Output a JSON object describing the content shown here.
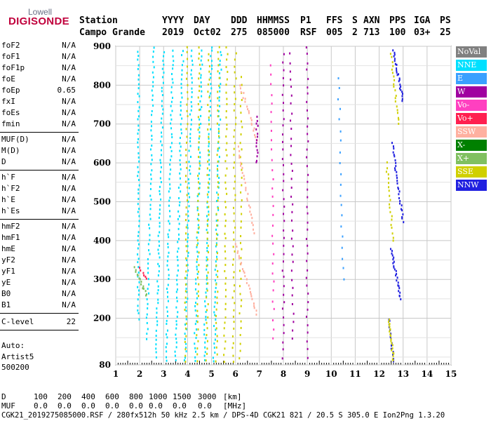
{
  "logo": {
    "top": "Lowell",
    "main": "DIGISONDE"
  },
  "header": {
    "labels": [
      "Station",
      "YYYY",
      "DAY",
      "DDD",
      "HHMMSS",
      "P1",
      "FFS",
      "S",
      "AXN",
      "PPS",
      "IGA",
      "PS"
    ],
    "station": "Campo Grande",
    "year": "2019",
    "day": "Oct02",
    "ddd": "275",
    "hhmmss": "085000",
    "p1": "RSF",
    "ffs": "005",
    "s": "2",
    "axn": "713",
    "pps": "100",
    "iga": "03+",
    "ps": "25"
  },
  "params_group1": [
    {
      "k": "foF2",
      "v": "N/A"
    },
    {
      "k": "foF1",
      "v": "N/A"
    },
    {
      "k": "foF1p",
      "v": "N/A"
    },
    {
      "k": "foE",
      "v": "N/A"
    },
    {
      "k": "foEp",
      "v": "0.65"
    },
    {
      "k": "fxI",
      "v": "N/A"
    },
    {
      "k": "foEs",
      "v": "N/A"
    },
    {
      "k": "fmin",
      "v": "N/A"
    }
  ],
  "params_group2": [
    {
      "k": "MUF(D)",
      "v": "N/A"
    },
    {
      "k": "M(D)",
      "v": "N/A"
    },
    {
      "k": "D",
      "v": "N/A"
    }
  ],
  "params_group3": [
    {
      "k": "h`F",
      "v": "N/A"
    },
    {
      "k": "h`F2",
      "v": "N/A"
    },
    {
      "k": "h`E",
      "v": "N/A"
    },
    {
      "k": "h`Es",
      "v": "N/A"
    }
  ],
  "params_group4": [
    {
      "k": "hmF2",
      "v": "N/A"
    },
    {
      "k": "hmF1",
      "v": "N/A"
    },
    {
      "k": "hmE",
      "v": "N/A"
    },
    {
      "k": "yF2",
      "v": "N/A"
    },
    {
      "k": "yF1",
      "v": "N/A"
    },
    {
      "k": "yE",
      "v": "N/A"
    },
    {
      "k": "B0",
      "v": "N/A"
    },
    {
      "k": "B1",
      "v": "N/A"
    }
  ],
  "clevel": {
    "k": "C-level",
    "v": "22"
  },
  "auto": {
    "l1": "Auto:",
    "l2": "Artist5",
    "l3": "500200"
  },
  "legend": [
    {
      "label": "NoVal",
      "color": "#808080"
    },
    {
      "label": "NNE",
      "color": "#00e0ff"
    },
    {
      "label": "E",
      "color": "#3aa0ff"
    },
    {
      "label": "W",
      "color": "#a000a0"
    },
    {
      "label": "Vo-",
      "color": "#ff40c0"
    },
    {
      "label": "Vo+",
      "color": "#ff2050"
    },
    {
      "label": "SSW",
      "color": "#ffb0a0"
    },
    {
      "label": "X-",
      "color": "#008000"
    },
    {
      "label": "X+",
      "color": "#80c060"
    },
    {
      "label": "SSE",
      "color": "#d0d000"
    },
    {
      "label": "NNW",
      "color": "#2020e0"
    }
  ],
  "chart_data": {
    "type": "scatter",
    "xlim": [
      1,
      15
    ],
    "ylim": [
      80,
      900
    ],
    "x_ticks": [
      "1",
      "2",
      "3",
      "4",
      "5",
      "6",
      "7",
      "8",
      "9",
      "10",
      "11",
      "12",
      "13",
      "14",
      "15"
    ],
    "y_ticks": [
      "80",
      "200",
      "300",
      "400",
      "500",
      "600",
      "700",
      "800",
      "900"
    ],
    "grid": true,
    "traces": [
      {
        "pol": "NNE",
        "f0": 1.95,
        "h0": 900,
        "f1": 1.95,
        "h1": 200,
        "n": 60
      },
      {
        "pol": "NNE",
        "f0": 2.6,
        "h0": 900,
        "f1": 2.3,
        "h1": 150,
        "n": 60
      },
      {
        "pol": "NNE",
        "f0": 3.0,
        "h0": 900,
        "f1": 2.7,
        "h1": 100,
        "n": 70
      },
      {
        "pol": "NNE",
        "f0": 3.4,
        "h0": 900,
        "f1": 3.1,
        "h1": 90,
        "n": 70
      },
      {
        "pol": "NNE",
        "f0": 3.8,
        "h0": 900,
        "f1": 3.5,
        "h1": 90,
        "n": 70
      },
      {
        "pol": "NNE",
        "f0": 4.2,
        "h0": 900,
        "f1": 3.9,
        "h1": 90,
        "n": 70
      },
      {
        "pol": "NNE",
        "f0": 4.6,
        "h0": 900,
        "f1": 4.3,
        "h1": 90,
        "n": 70
      },
      {
        "pol": "NNE",
        "f0": 5.0,
        "h0": 900,
        "f1": 4.7,
        "h1": 90,
        "n": 70
      },
      {
        "pol": "NNE",
        "f0": 5.4,
        "h0": 900,
        "f1": 5.1,
        "h1": 90,
        "n": 70
      },
      {
        "pol": "SSE",
        "f0": 4.0,
        "h0": 900,
        "f1": 3.9,
        "h1": 90,
        "n": 50
      },
      {
        "pol": "SSE",
        "f0": 4.5,
        "h0": 900,
        "f1": 4.4,
        "h1": 90,
        "n": 50
      },
      {
        "pol": "SSE",
        "f0": 4.9,
        "h0": 900,
        "f1": 4.8,
        "h1": 90,
        "n": 50
      },
      {
        "pol": "SSE",
        "f0": 5.3,
        "h0": 900,
        "f1": 5.2,
        "h1": 90,
        "n": 50
      },
      {
        "pol": "SSE",
        "f0": 5.65,
        "h0": 900,
        "f1": 5.55,
        "h1": 90,
        "n": 50
      },
      {
        "pol": "SSE",
        "f0": 6.0,
        "h0": 900,
        "f1": 5.9,
        "h1": 90,
        "n": 50
      },
      {
        "pol": "SSE",
        "f0": 6.25,
        "h0": 820,
        "f1": 6.2,
        "h1": 100,
        "n": 40
      },
      {
        "pol": "SSW",
        "f0": 6.2,
        "h0": 800,
        "f1": 6.9,
        "h1": 660,
        "n": 20
      },
      {
        "pol": "SSW",
        "f0": 6.1,
        "h0": 640,
        "f1": 6.8,
        "h1": 420,
        "n": 25
      },
      {
        "pol": "SSW",
        "f0": 6.0,
        "h0": 390,
        "f1": 6.9,
        "h1": 210,
        "n": 25
      },
      {
        "pol": "W",
        "f0": 6.9,
        "h0": 720,
        "f1": 6.9,
        "h1": 600,
        "n": 15
      },
      {
        "pol": "W",
        "f0": 8.0,
        "h0": 900,
        "f1": 8.0,
        "h1": 100,
        "n": 40
      },
      {
        "pol": "W",
        "f0": 8.3,
        "h0": 880,
        "f1": 8.4,
        "h1": 150,
        "n": 35
      },
      {
        "pol": "W",
        "f0": 9.0,
        "h0": 900,
        "f1": 9.0,
        "h1": 100,
        "n": 40
      },
      {
        "pol": "Vo-",
        "f0": 7.5,
        "h0": 850,
        "f1": 7.6,
        "h1": 150,
        "n": 30
      },
      {
        "pol": "E",
        "f0": 10.3,
        "h0": 820,
        "f1": 10.5,
        "h1": 300,
        "n": 20
      },
      {
        "pol": "NNW",
        "f0": 12.6,
        "h0": 890,
        "f1": 13.0,
        "h1": 760,
        "n": 25
      },
      {
        "pol": "NNW",
        "f0": 12.55,
        "h0": 650,
        "f1": 13.0,
        "h1": 450,
        "n": 30
      },
      {
        "pol": "NNW",
        "f0": 12.5,
        "h0": 380,
        "f1": 12.9,
        "h1": 250,
        "n": 25
      },
      {
        "pol": "NNW",
        "f0": 12.4,
        "h0": 200,
        "f1": 12.6,
        "h1": 90,
        "n": 15
      },
      {
        "pol": "SSE",
        "f0": 12.5,
        "h0": 880,
        "f1": 12.8,
        "h1": 700,
        "n": 20
      },
      {
        "pol": "SSE",
        "f0": 12.3,
        "h0": 600,
        "f1": 12.6,
        "h1": 400,
        "n": 20
      },
      {
        "pol": "SSE",
        "f0": 12.4,
        "h0": 200,
        "f1": 12.6,
        "h1": 90,
        "n": 20
      },
      {
        "pol": "X+",
        "f0": 1.8,
        "h0": 330,
        "f1": 2.3,
        "h1": 260,
        "n": 15
      },
      {
        "pol": "Vo+",
        "f0": 2.0,
        "h0": 330,
        "f1": 2.3,
        "h1": 300,
        "n": 6
      }
    ]
  },
  "bottom": {
    "d_label": "D",
    "d_values": [
      "100",
      "200",
      "400",
      "600",
      "800",
      "1000",
      "1500",
      "3000",
      "[km]"
    ],
    "muf_label": "MUF",
    "muf_values": [
      "0.0",
      "0.0",
      "0.0",
      "0.0",
      "0.0",
      "0.0",
      "0.0",
      "0.0",
      "[MHz]"
    ],
    "footer": "CGK21_2019275085000.RSF / 280fx512h 50 kHz 2.5 km / DPS-4D CGK21 821 / 20.5 S 305.0 E Ion2Png 1.3.20"
  }
}
